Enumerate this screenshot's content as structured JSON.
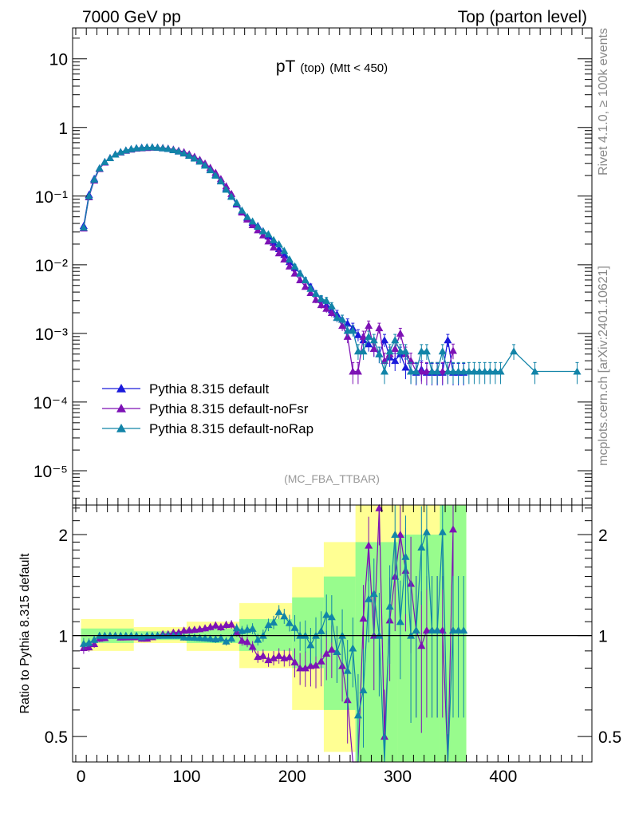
{
  "header": {
    "left": "7000 GeV pp",
    "right": "Top (parton level)"
  },
  "side_labels": {
    "rivet": "Rivet 4.1.0, ≥ 100k events",
    "mcplots": "mcplots.cern.ch [arXiv:2401.10621]"
  },
  "chart_data": {
    "type": "line",
    "title": "pT",
    "title_sub": "(top)",
    "title_cut": "(Mtt < 450)",
    "analysis_tag": "(MC_FBA_TTBAR)",
    "xlabel": "",
    "ylabel": "",
    "xlim": [
      -8,
      484
    ],
    "ylim_log10": [
      -5.5,
      1.45
    ],
    "x_ticks": [
      0,
      100,
      200,
      300,
      400
    ],
    "y_ticks": [
      {
        "exp": 1,
        "label": "10"
      },
      {
        "exp": 0,
        "label": "1"
      },
      {
        "exp": -1,
        "label": "10⁻¹"
      },
      {
        "exp": -2,
        "label": "10⁻²"
      },
      {
        "exp": -3,
        "label": "10⁻³"
      },
      {
        "exp": -4,
        "label": "10⁻⁴"
      },
      {
        "exp": -5,
        "label": "10⁻⁵"
      }
    ],
    "series_colors": [
      "#1a1adb",
      "#7d12b5",
      "#1284a8"
    ],
    "legend": [
      "Pythia 8.315 default",
      "Pythia 8.315 default-noFsr",
      "Pythia 8.315 default-noRap"
    ],
    "series": [
      {
        "name": "Pythia 8.315 default",
        "x": [
          2.5,
          7.5,
          12.5,
          17.5,
          22.5,
          27.5,
          32.5,
          37.5,
          42.5,
          47.5,
          52.5,
          57.5,
          62.5,
          67.5,
          72.5,
          77.5,
          82.5,
          87.5,
          92.5,
          97.5,
          102.5,
          107.5,
          112.5,
          117.5,
          122.5,
          127.5,
          132.5,
          137.5,
          142.5,
          147.5,
          152.5,
          157.5,
          162.5,
          167.5,
          172.5,
          177.5,
          182.5,
          187.5,
          192.5,
          197.5,
          202.5,
          207.5,
          212.5,
          217.5,
          222.5,
          227.5,
          232.5,
          237.5,
          242.5,
          247.5,
          252.5,
          257.5,
          262.5,
          267.5,
          272.5,
          277.5,
          282.5,
          287.5,
          292.5,
          297.5,
          302.5,
          307.5,
          312.5,
          317.5,
          322.5,
          327.5,
          332.5,
          337.5,
          342.5,
          347.5,
          352.5,
          357.5,
          362.5
        ],
        "y": [
          0.037,
          0.105,
          0.18,
          0.255,
          0.315,
          0.36,
          0.405,
          0.44,
          0.465,
          0.485,
          0.5,
          0.51,
          0.515,
          0.515,
          0.51,
          0.5,
          0.49,
          0.47,
          0.45,
          0.425,
          0.395,
          0.36,
          0.325,
          0.285,
          0.245,
          0.205,
          0.168,
          0.13,
          0.1,
          0.076,
          0.06,
          0.048,
          0.041,
          0.037,
          0.031,
          0.026,
          0.021,
          0.017,
          0.014,
          0.011,
          0.009,
          0.0075,
          0.006,
          0.0048,
          0.0038,
          0.0031,
          0.0026,
          0.0022,
          0.0019,
          0.0016,
          0.0014,
          0.0012,
          0.00095,
          0.0008,
          0.0007,
          0.0006,
          0.0005,
          0.0008,
          0.00045,
          0.0004,
          0.0005,
          0.00032,
          0.00028,
          0.00027,
          0.0003,
          0.00027,
          0.00027,
          0.00027,
          0.00027,
          0.0008,
          0.00027,
          0.00027,
          0.00027
        ]
      },
      {
        "name": "Pythia 8.315 default-noFsr",
        "x": [
          2.5,
          7.5,
          12.5,
          17.5,
          22.5,
          27.5,
          32.5,
          37.5,
          42.5,
          47.5,
          52.5,
          57.5,
          62.5,
          67.5,
          72.5,
          77.5,
          82.5,
          87.5,
          92.5,
          97.5,
          102.5,
          107.5,
          112.5,
          117.5,
          122.5,
          127.5,
          132.5,
          137.5,
          142.5,
          147.5,
          152.5,
          157.5,
          162.5,
          167.5,
          172.5,
          177.5,
          182.5,
          187.5,
          192.5,
          197.5,
          202.5,
          207.5,
          212.5,
          217.5,
          222.5,
          227.5,
          232.5,
          237.5,
          242.5,
          247.5,
          252.5,
          257.5,
          262.5,
          267.5,
          272.5,
          277.5,
          282.5,
          287.5,
          292.5,
          297.5,
          302.5,
          307.5,
          312.5,
          317.5,
          322.5,
          327.5,
          332.5,
          337.5,
          342.5,
          347.5,
          352.5
        ],
        "y": [
          0.034,
          0.097,
          0.17,
          0.25,
          0.31,
          0.36,
          0.405,
          0.435,
          0.46,
          0.48,
          0.495,
          0.5,
          0.505,
          0.51,
          0.51,
          0.505,
          0.495,
          0.48,
          0.46,
          0.44,
          0.41,
          0.375,
          0.34,
          0.3,
          0.26,
          0.22,
          0.178,
          0.14,
          0.108,
          0.078,
          0.058,
          0.046,
          0.038,
          0.032,
          0.027,
          0.022,
          0.018,
          0.0148,
          0.012,
          0.0095,
          0.0075,
          0.006,
          0.0048,
          0.0039,
          0.0031,
          0.0026,
          0.0023,
          0.002,
          0.0017,
          0.0013,
          0.0009,
          0.00028,
          0.00028,
          0.0009,
          0.0013,
          0.0006,
          0.0012,
          0.0004,
          0.0005,
          0.0006,
          0.001,
          0.0005,
          0.0004,
          0.00028,
          0.00028,
          0.00028,
          0.00028,
          0.00028,
          0.00028,
          0.00028,
          0.00056
        ]
      },
      {
        "name": "Pythia 8.315 default-noRap",
        "x": [
          2.5,
          7.5,
          12.5,
          17.5,
          22.5,
          27.5,
          32.5,
          37.5,
          42.5,
          47.5,
          52.5,
          57.5,
          62.5,
          67.5,
          72.5,
          77.5,
          82.5,
          87.5,
          92.5,
          97.5,
          102.5,
          107.5,
          112.5,
          117.5,
          122.5,
          127.5,
          132.5,
          137.5,
          142.5,
          147.5,
          152.5,
          157.5,
          162.5,
          167.5,
          172.5,
          177.5,
          182.5,
          187.5,
          192.5,
          197.5,
          202.5,
          207.5,
          212.5,
          217.5,
          222.5,
          227.5,
          232.5,
          237.5,
          242.5,
          247.5,
          252.5,
          257.5,
          262.5,
          267.5,
          272.5,
          277.5,
          282.5,
          287.5,
          292.5,
          297.5,
          302.5,
          307.5,
          312.5,
          317.5,
          322.5,
          327.5,
          332.5,
          337.5,
          342.5,
          347.5,
          352.5,
          357.5,
          362.5,
          367.5,
          372.5,
          377.5,
          382.5,
          387.5,
          392.5,
          397.5,
          410,
          430,
          470
        ],
        "y": [
          0.035,
          0.1,
          0.175,
          0.255,
          0.315,
          0.36,
          0.405,
          0.44,
          0.465,
          0.485,
          0.5,
          0.505,
          0.515,
          0.515,
          0.51,
          0.5,
          0.49,
          0.47,
          0.45,
          0.42,
          0.39,
          0.355,
          0.32,
          0.28,
          0.24,
          0.2,
          0.165,
          0.125,
          0.098,
          0.08,
          0.062,
          0.05,
          0.043,
          0.036,
          0.031,
          0.028,
          0.023,
          0.02,
          0.016,
          0.012,
          0.0095,
          0.0075,
          0.006,
          0.0045,
          0.0038,
          0.0032,
          0.003,
          0.0025,
          0.0017,
          0.0016,
          0.0011,
          0.0011,
          0.00055,
          0.00055,
          0.0009,
          0.0008,
          0.0005,
          0.00028,
          0.00055,
          0.0008,
          0.00055,
          0.00055,
          0.00028,
          0.00028,
          0.00055,
          0.00055,
          0.00028,
          0.00028,
          0.00055,
          0.00028,
          0.00028,
          0.00028,
          0.00028,
          0.00028,
          0.00028,
          0.00028,
          0.00028,
          0.00028,
          0.00028,
          0.00028,
          0.00055,
          0.00028,
          0.00028
        ]
      }
    ],
    "ratio": {
      "ylabel": "Ratio to Pythia 8.315 default",
      "ylim": [
        0.42,
        2.45
      ],
      "y_ticks": [
        0.5,
        1,
        2
      ],
      "y_tick_labels": [
        "0.5",
        "1",
        "2"
      ],
      "band_bins": [
        {
          "x": [
            0,
            50
          ],
          "y68": [
            0.95,
            1.05
          ],
          "y95": [
            0.9,
            1.12
          ]
        },
        {
          "x": [
            50,
            100
          ],
          "y68": [
            0.97,
            1.03
          ],
          "y95": [
            0.95,
            1.06
          ]
        },
        {
          "x": [
            100,
            150
          ],
          "y68": [
            0.95,
            1.05
          ],
          "y95": [
            0.9,
            1.1
          ]
        },
        {
          "x": [
            150,
            200
          ],
          "y68": [
            0.9,
            1.12
          ],
          "y95": [
            0.8,
            1.25
          ]
        },
        {
          "x": [
            200,
            230
          ],
          "y68": [
            0.8,
            1.3
          ],
          "y95": [
            0.6,
            1.6
          ]
        },
        {
          "x": [
            230,
            260
          ],
          "y68": [
            0.6,
            1.5
          ],
          "y95": [
            0.45,
            1.9
          ]
        },
        {
          "x": [
            260,
            300
          ],
          "y68": [
            0.42,
            1.9
          ],
          "y95": [
            0.42,
            2.45
          ]
        },
        {
          "x": [
            300,
            340
          ],
          "y68": [
            0.42,
            2.0
          ],
          "y95": [
            0.42,
            2.45
          ]
        },
        {
          "x": [
            340,
            365
          ],
          "y68": [
            0.42,
            2.45
          ],
          "y95": [
            0.42,
            2.45
          ]
        }
      ]
    }
  }
}
